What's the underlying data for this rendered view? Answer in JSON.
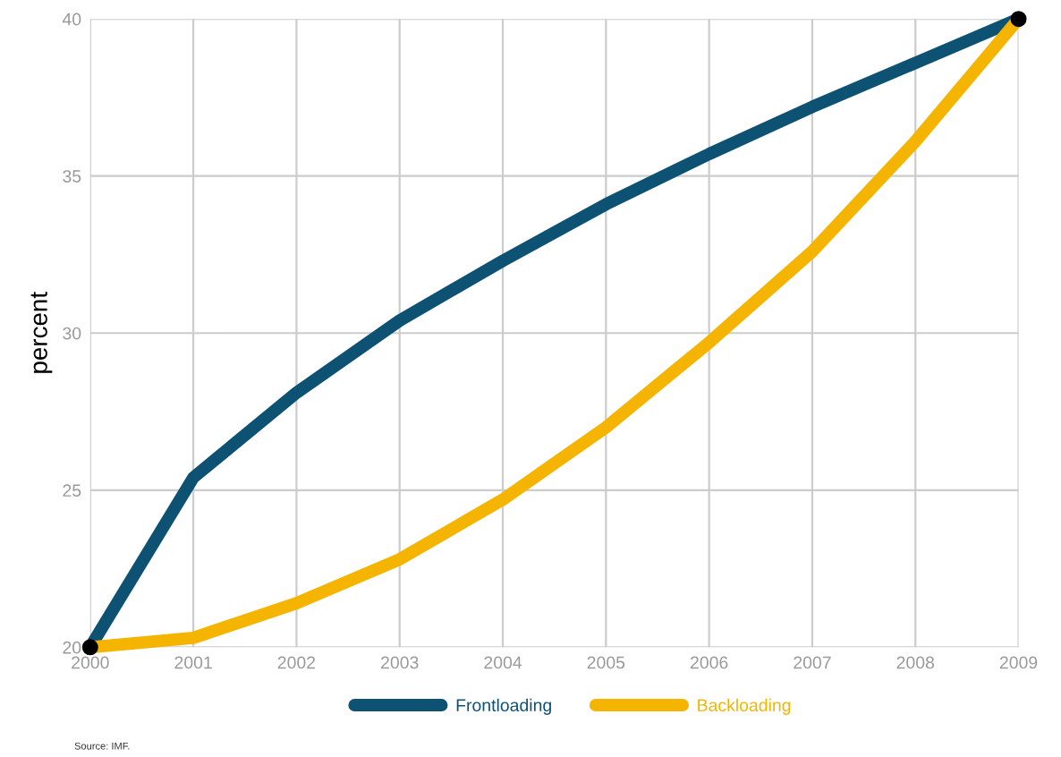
{
  "chart_data": {
    "type": "line",
    "ylabel": "percent",
    "x": [
      2000,
      2001,
      2002,
      2003,
      2004,
      2005,
      2006,
      2007,
      2008,
      2009
    ],
    "series": [
      {
        "name": "Frontloading",
        "color": "#0d5273",
        "values": [
          20,
          25.4,
          28.1,
          30.4,
          32.3,
          34.1,
          35.7,
          37.2,
          38.6,
          40
        ]
      },
      {
        "name": "Backloading",
        "color": "#f5b400",
        "values": [
          20,
          20.3,
          21.4,
          22.8,
          24.7,
          27.0,
          29.7,
          32.6,
          36.1,
          40
        ]
      },
      {
        "type": "scatter",
        "color": "#000000",
        "x": [
          2000,
          2009
        ],
        "values": [
          20,
          40
        ],
        "marker": "circle"
      }
    ],
    "xlim": [
      2000,
      2009
    ],
    "ylim": [
      20,
      40
    ],
    "xticks": [
      2000,
      2001,
      2002,
      2003,
      2004,
      2005,
      2006,
      2007,
      2008,
      2009
    ],
    "yticks": [
      20,
      25,
      30,
      35,
      40
    ],
    "grid": true,
    "legend": "bottom",
    "marker": "none",
    "line_style": "solid",
    "annotations": [
      "Source: IMF."
    ]
  }
}
